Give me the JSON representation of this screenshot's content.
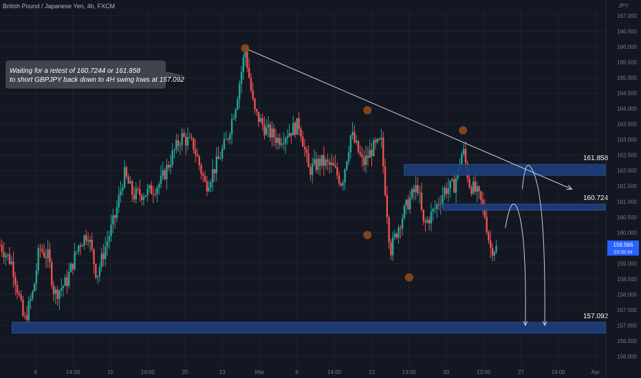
{
  "header": {
    "symbol_title": "British Pound / Japanese Yen, 4h, FXCM"
  },
  "chart_data": {
    "type": "candlestick",
    "currency_label": "JPY",
    "y_range": [
      155.7,
      167.2
    ],
    "y_ticks": [
      "156.000",
      "156.500",
      "157.000",
      "157.500",
      "158.000",
      "158.500",
      "159.000",
      "159.500",
      "160.000",
      "160.500",
      "161.000",
      "161.500",
      "162.000",
      "162.500",
      "163.000",
      "163.500",
      "164.000",
      "164.500",
      "165.000",
      "165.500",
      "166.000",
      "166.500",
      "167.000"
    ],
    "x_labels": [
      "6",
      "14:00",
      "15",
      "14:00",
      "20",
      "23",
      "Mar",
      "6",
      "14:00",
      "13",
      "13:00",
      "20",
      "13:00",
      "27",
      "14:00",
      "Apr"
    ],
    "current_price": {
      "price": "159.566",
      "countdown": "03:35:34",
      "value": 159.566
    },
    "path": [
      [
        0,
        159.6
      ],
      [
        0.02,
        159.0
      ],
      [
        0.04,
        157.1
      ],
      [
        0.055,
        158.1
      ],
      [
        0.065,
        159.5
      ],
      [
        0.08,
        159.2
      ],
      [
        0.09,
        158.0
      ],
      [
        0.11,
        158.4
      ],
      [
        0.13,
        159.6
      ],
      [
        0.145,
        160.0
      ],
      [
        0.16,
        158.6
      ],
      [
        0.175,
        159.6
      ],
      [
        0.19,
        160.5
      ],
      [
        0.205,
        161.9
      ],
      [
        0.22,
        161.2
      ],
      [
        0.245,
        161.3
      ],
      [
        0.265,
        161.6
      ],
      [
        0.285,
        162.5
      ],
      [
        0.3,
        163.1
      ],
      [
        0.32,
        162.8
      ],
      [
        0.34,
        161.5
      ],
      [
        0.36,
        162.3
      ],
      [
        0.375,
        163.0
      ],
      [
        0.39,
        164.2
      ],
      [
        0.405,
        165.9
      ],
      [
        0.42,
        163.9
      ],
      [
        0.44,
        163.3
      ],
      [
        0.46,
        163.0
      ],
      [
        0.48,
        163.3
      ],
      [
        0.495,
        163.5
      ],
      [
        0.51,
        162.0
      ],
      [
        0.53,
        162.3
      ],
      [
        0.55,
        162.1
      ],
      [
        0.565,
        161.6
      ],
      [
        0.58,
        163.2
      ],
      [
        0.6,
        162.2
      ],
      [
        0.615,
        162.7
      ],
      [
        0.63,
        162.9
      ],
      [
        0.645,
        159.4
      ],
      [
        0.66,
        160.3
      ],
      [
        0.675,
        161.0
      ],
      [
        0.69,
        161.5
      ],
      [
        0.7,
        160.2
      ],
      [
        0.72,
        160.8
      ],
      [
        0.735,
        161.4
      ],
      [
        0.75,
        161.5
      ],
      [
        0.765,
        162.7
      ],
      [
        0.775,
        161.6
      ],
      [
        0.79,
        161.2
      ],
      [
        0.8,
        160.7
      ],
      [
        0.81,
        159.5
      ],
      [
        0.82,
        159.5
      ]
    ],
    "swing_points": [
      {
        "index": 0.405,
        "price": 165.95
      },
      {
        "index": 0.607,
        "price": 163.95
      },
      {
        "index": 0.765,
        "price": 163.3
      },
      {
        "index": 0.607,
        "price": 159.92
      },
      {
        "index": 0.676,
        "price": 158.55
      }
    ],
    "zones": [
      {
        "label": "161.858",
        "price_top": 162.2,
        "price_bottom": 161.85,
        "start": 0.668
      },
      {
        "label": "160.724",
        "price_top": 160.92,
        "price_bottom": 160.72,
        "start": 0.732
      },
      {
        "label": "157.092",
        "price_top": 157.1,
        "price_bottom": 156.75,
        "start": 0.02
      }
    ],
    "trendline": {
      "from": {
        "index": 0.405,
        "price": 165.95
      },
      "to": {
        "index": 0.945,
        "price": 161.4
      }
    },
    "projection_arrows": [
      {
        "from": {
          "index": 0.835,
          "price": 160.15
        },
        "peak": {
          "index": 0.853,
          "price": 160.85
        },
        "to": {
          "index": 0.868,
          "price": 157.0
        }
      },
      {
        "from": {
          "index": 0.863,
          "price": 161.4
        },
        "peak": {
          "index": 0.877,
          "price": 162.1
        },
        "to": {
          "index": 0.9,
          "price": 157.0
        }
      }
    ],
    "annotation": "Waiting for a retest of 160.7244 or 161.858 to short GBPJPY back down to 4H swing lows at 157.092"
  },
  "colors": {
    "bg": "#131722",
    "up": "#26a69a",
    "down": "#ef5350",
    "zone": "#1e3d7a",
    "swing": "#8b4a1c",
    "grid": "#1e222d",
    "text": "#b2b5be",
    "price_tag": "#2962ff"
  }
}
